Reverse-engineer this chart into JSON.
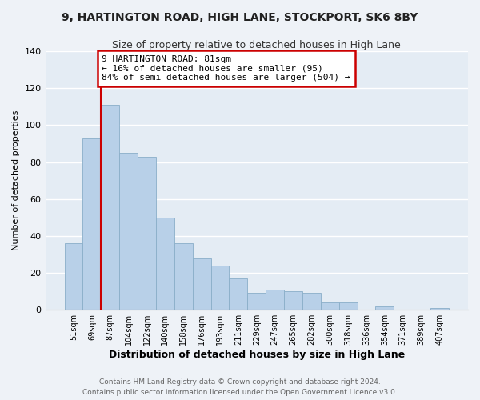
{
  "title": "9, HARTINGTON ROAD, HIGH LANE, STOCKPORT, SK6 8BY",
  "subtitle": "Size of property relative to detached houses in High Lane",
  "bar_labels": [
    "51sqm",
    "69sqm",
    "87sqm",
    "104sqm",
    "122sqm",
    "140sqm",
    "158sqm",
    "176sqm",
    "193sqm",
    "211sqm",
    "229sqm",
    "247sqm",
    "265sqm",
    "282sqm",
    "300sqm",
    "318sqm",
    "336sqm",
    "354sqm",
    "371sqm",
    "389sqm",
    "407sqm"
  ],
  "bar_values": [
    36,
    93,
    111,
    85,
    83,
    50,
    36,
    28,
    24,
    17,
    9,
    11,
    10,
    9,
    4,
    4,
    0,
    2,
    0,
    0,
    1
  ],
  "bar_color": "#b8d0e8",
  "bar_edge_color": "#8aaec8",
  "xlabel": "Distribution of detached houses by size in High Lane",
  "ylabel": "Number of detached properties",
  "ylim": [
    0,
    140
  ],
  "yticks": [
    0,
    20,
    40,
    60,
    80,
    100,
    120,
    140
  ],
  "annotation_title": "9 HARTINGTON ROAD: 81sqm",
  "annotation_line1": "← 16% of detached houses are smaller (95)",
  "annotation_line2": "84% of semi-detached houses are larger (504) →",
  "annotation_box_color": "#ffffff",
  "annotation_border_color": "#cc0000",
  "vline_color": "#cc0000",
  "footer1": "Contains HM Land Registry data © Crown copyright and database right 2024.",
  "footer2": "Contains public sector information licensed under the Open Government Licence v3.0.",
  "background_color": "#eef2f7",
  "plot_background_color": "#e4ecf4",
  "grid_color": "#ffffff",
  "title_fontsize": 10,
  "subtitle_fontsize": 9,
  "xlabel_fontsize": 9,
  "ylabel_fontsize": 8,
  "xtick_fontsize": 7,
  "ytick_fontsize": 8,
  "footer_fontsize": 6.5
}
